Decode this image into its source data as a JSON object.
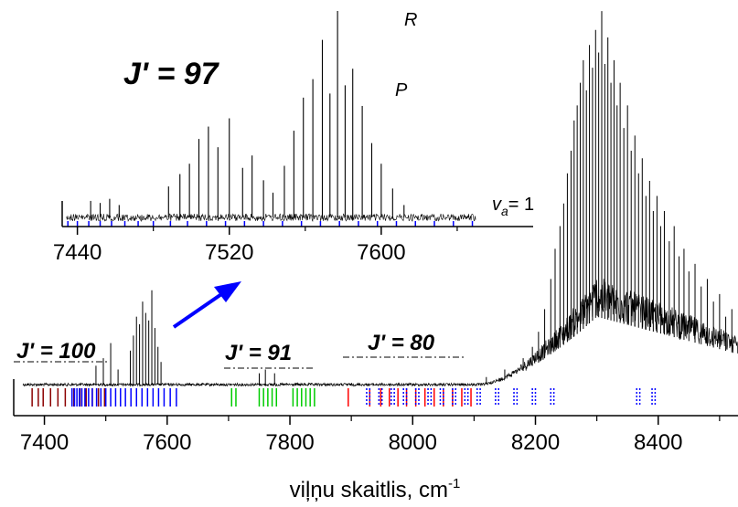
{
  "chart_data": [
    {
      "type": "line",
      "role": "main-spectrum",
      "title": "",
      "xlabel": "viļņu skaitlis, cm",
      "xlabel_superscript": "-1",
      "ylabel": "",
      "xlim": [
        7350,
        8530
      ],
      "x_ticks": [
        7400,
        7600,
        7800,
        8000,
        8200,
        8400
      ],
      "x_tick_labels": [
        "7400",
        "7600",
        "7800",
        "8000",
        "8200",
        "8400"
      ],
      "baseline_peaks": [
        {
          "x": 7484,
          "h": 0.05
        },
        {
          "x": 7496,
          "h": 0.07
        },
        {
          "x": 7508,
          "h": 0.11
        },
        {
          "x": 7520,
          "h": 0.04
        },
        {
          "x": 7540,
          "h": 0.09
        },
        {
          "x": 7545,
          "h": 0.13
        },
        {
          "x": 7550,
          "h": 0.18
        },
        {
          "x": 7555,
          "h": 0.16
        },
        {
          "x": 7560,
          "h": 0.22
        },
        {
          "x": 7565,
          "h": 0.19
        },
        {
          "x": 7570,
          "h": 0.17
        },
        {
          "x": 7575,
          "h": 0.25
        },
        {
          "x": 7580,
          "h": 0.15
        },
        {
          "x": 7585,
          "h": 0.1
        },
        {
          "x": 7590,
          "h": 0.06
        },
        {
          "x": 7750,
          "h": 0.03
        },
        {
          "x": 7760,
          "h": 0.04
        },
        {
          "x": 7775,
          "h": 0.03
        }
      ],
      "band_peaks": [
        {
          "x": 8120,
          "h": 0.02
        },
        {
          "x": 8150,
          "h": 0.04
        },
        {
          "x": 8180,
          "h": 0.07
        },
        {
          "x": 8195,
          "h": 0.1
        },
        {
          "x": 8205,
          "h": 0.14
        },
        {
          "x": 8215,
          "h": 0.2
        },
        {
          "x": 8225,
          "h": 0.28
        },
        {
          "x": 8232,
          "h": 0.36
        },
        {
          "x": 8240,
          "h": 0.42
        },
        {
          "x": 8246,
          "h": 0.48
        },
        {
          "x": 8252,
          "h": 0.56
        },
        {
          "x": 8258,
          "h": 0.62
        },
        {
          "x": 8263,
          "h": 0.7
        },
        {
          "x": 8268,
          "h": 0.74
        },
        {
          "x": 8273,
          "h": 0.8
        },
        {
          "x": 8278,
          "h": 0.86
        },
        {
          "x": 8283,
          "h": 0.78
        },
        {
          "x": 8288,
          "h": 0.9
        },
        {
          "x": 8293,
          "h": 0.84
        },
        {
          "x": 8298,
          "h": 0.94
        },
        {
          "x": 8303,
          "h": 0.88
        },
        {
          "x": 8308,
          "h": 0.99
        },
        {
          "x": 8313,
          "h": 0.85
        },
        {
          "x": 8318,
          "h": 0.92
        },
        {
          "x": 8323,
          "h": 0.8
        },
        {
          "x": 8328,
          "h": 0.86
        },
        {
          "x": 8333,
          "h": 0.74
        },
        {
          "x": 8338,
          "h": 0.8
        },
        {
          "x": 8344,
          "h": 0.68
        },
        {
          "x": 8350,
          "h": 0.74
        },
        {
          "x": 8356,
          "h": 0.62
        },
        {
          "x": 8362,
          "h": 0.66
        },
        {
          "x": 8368,
          "h": 0.56
        },
        {
          "x": 8374,
          "h": 0.6
        },
        {
          "x": 8380,
          "h": 0.5
        },
        {
          "x": 8386,
          "h": 0.54
        },
        {
          "x": 8392,
          "h": 0.46
        },
        {
          "x": 8398,
          "h": 0.5
        },
        {
          "x": 8404,
          "h": 0.42
        },
        {
          "x": 8410,
          "h": 0.46
        },
        {
          "x": 8418,
          "h": 0.38
        },
        {
          "x": 8426,
          "h": 0.42
        },
        {
          "x": 8434,
          "h": 0.34
        },
        {
          "x": 8442,
          "h": 0.36
        },
        {
          "x": 8450,
          "h": 0.3
        },
        {
          "x": 8460,
          "h": 0.32
        },
        {
          "x": 8470,
          "h": 0.26
        },
        {
          "x": 8480,
          "h": 0.28
        },
        {
          "x": 8490,
          "h": 0.22
        },
        {
          "x": 8500,
          "h": 0.24
        },
        {
          "x": 8510,
          "h": 0.18
        },
        {
          "x": 8520,
          "h": 0.2
        }
      ],
      "band_envelope": {
        "start": 8110,
        "peak": 8300,
        "end": 8530,
        "height": 0.18
      },
      "assignment_groups": [
        {
          "color": "#8b0000",
          "style": "solid",
          "positions": [
            7380,
            7390,
            7398,
            7410,
            7422,
            7434,
            7448,
            7458,
            7468,
            7478,
            7488,
            7498
          ]
        },
        {
          "color": "#0000ff",
          "style": "solid",
          "positions": [
            7445,
            7449,
            7453,
            7457,
            7461,
            7466,
            7472,
            7478,
            7485,
            7492,
            7500,
            7508,
            7516,
            7524,
            7532,
            7541,
            7550,
            7559,
            7568,
            7577,
            7586,
            7595,
            7605,
            7615
          ]
        },
        {
          "color": "#00cc00",
          "style": "solid",
          "positions": [
            7705,
            7712,
            7750,
            7757,
            7764,
            7771,
            7778,
            7805,
            7812,
            7819,
            7826,
            7833,
            7840
          ]
        },
        {
          "color": "#ff0000",
          "style": "solid",
          "positions": [
            7895,
            7930,
            7948,
            7962,
            7976,
            7990,
            8005,
            8020,
            8035,
            8050,
            8065,
            8080,
            8095
          ]
        },
        {
          "color": "#0000ff",
          "style": "dotted",
          "positions": [
            7925,
            7930,
            7945,
            7950,
            7965,
            7970,
            7985,
            7990,
            8005,
            8010,
            8025,
            8030,
            8045,
            8050,
            8065,
            8070,
            8085,
            8090,
            8105,
            8110,
            8135,
            8140,
            8165,
            8170,
            8195,
            8200,
            8225,
            8230,
            8365,
            8370,
            8390,
            8395
          ]
        }
      ]
    },
    {
      "type": "line",
      "role": "inset-spectrum-J97",
      "title": "J' = 97",
      "xlabel": "",
      "ylabel": "",
      "xlim": [
        7432,
        7680
      ],
      "x_ticks": [
        7440,
        7520,
        7600
      ],
      "x_tick_labels": [
        "7440",
        "7520",
        "7600"
      ],
      "peaks": [
        {
          "x": 7447,
          "h": 0.08
        },
        {
          "x": 7452,
          "h": 0.07
        },
        {
          "x": 7457,
          "h": 0.09
        },
        {
          "x": 7462,
          "h": 0.06
        },
        {
          "x": 7488,
          "h": 0.15
        },
        {
          "x": 7494,
          "h": 0.21
        },
        {
          "x": 7499,
          "h": 0.26
        },
        {
          "x": 7504,
          "h": 0.38
        },
        {
          "x": 7509,
          "h": 0.44
        },
        {
          "x": 7514,
          "h": 0.34
        },
        {
          "x": 7520,
          "h": 0.48
        },
        {
          "x": 7527,
          "h": 0.24
        },
        {
          "x": 7532,
          "h": 0.3
        },
        {
          "x": 7538,
          "h": 0.18
        },
        {
          "x": 7543,
          "h": 0.12
        },
        {
          "x": 7549,
          "h": 0.25
        },
        {
          "x": 7554,
          "h": 0.42
        },
        {
          "x": 7559,
          "h": 0.58
        },
        {
          "x": 7564,
          "h": 0.67
        },
        {
          "x": 7569,
          "h": 0.86
        },
        {
          "x": 7573,
          "h": 0.6
        },
        {
          "x": 7577,
          "h": 1.0
        },
        {
          "x": 7581,
          "h": 0.64
        },
        {
          "x": 7585,
          "h": 0.72
        },
        {
          "x": 7590,
          "h": 0.54
        },
        {
          "x": 7595,
          "h": 0.36
        },
        {
          "x": 7600,
          "h": 0.26
        },
        {
          "x": 7606,
          "h": 0.14
        },
        {
          "x": 7612,
          "h": 0.06
        }
      ],
      "assignment_ticks": [
        7435,
        7440,
        7446,
        7452,
        7458,
        7465,
        7472,
        7480,
        7489,
        7498,
        7508,
        7518,
        7528,
        7538,
        7548,
        7558,
        7568,
        7578,
        7588,
        7598,
        7608,
        7618,
        7628,
        7638,
        7648
      ],
      "assignment_color": "#0000ff",
      "annotations": {
        "r_branch": "R",
        "p_branch": "P",
        "vibrational": "v",
        "vibrational_sub": "a",
        "vibrational_value": "= 1"
      }
    }
  ],
  "labels": {
    "j100": "J' = 100",
    "j91": "J' = 91",
    "j80": "J' = 80"
  },
  "arrow_color": "#0000ff"
}
